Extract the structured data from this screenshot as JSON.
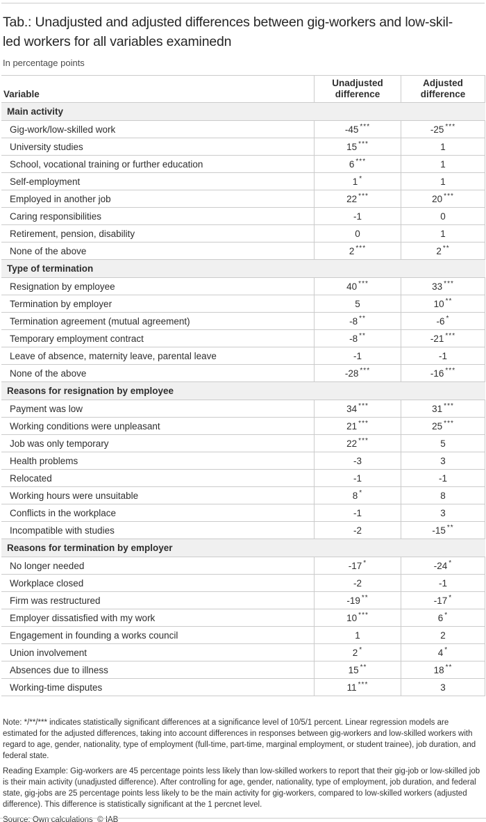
{
  "title": {
    "line1": "Tab.: Unadjusted and adjusted differences between gig-workers and low-skil-",
    "line2": "led workers for all variables examinedn"
  },
  "subtitle": "In percentage points",
  "table": {
    "header": {
      "variable": "Variable",
      "unadjusted": "Unadjusted difference",
      "adjusted": "Adjusted difference"
    },
    "sections": [
      {
        "label": "Main activity",
        "rows": [
          {
            "label": "Gig-work/low-skilled work",
            "unadj": "-45",
            "unadj_sig": "***",
            "adj": "-25",
            "adj_sig": "***"
          },
          {
            "label": "University studies",
            "unadj": "15",
            "unadj_sig": "***",
            "adj": "1",
            "adj_sig": ""
          },
          {
            "label": "School, vocational training or further education",
            "unadj": "6",
            "unadj_sig": "***",
            "adj": "1",
            "adj_sig": ""
          },
          {
            "label": "Self-employment",
            "unadj": "1",
            "unadj_sig": "*",
            "adj": "1",
            "adj_sig": ""
          },
          {
            "label": "Employed in another job",
            "unadj": "22",
            "unadj_sig": "***",
            "adj": "20",
            "adj_sig": "***"
          },
          {
            "label": "Caring responsibilities",
            "unadj": "-1",
            "unadj_sig": "",
            "adj": "0",
            "adj_sig": ""
          },
          {
            "label": "Retirement, pension, disability",
            "unadj": "0",
            "unadj_sig": "",
            "adj": "1",
            "adj_sig": ""
          },
          {
            "label": "None of the above",
            "unadj": "2",
            "unadj_sig": "***",
            "adj": "2",
            "adj_sig": "**"
          }
        ]
      },
      {
        "label": "Type of termination",
        "rows": [
          {
            "label": "Resignation by employee",
            "unadj": "40",
            "unadj_sig": "***",
            "adj": "33",
            "adj_sig": "***"
          },
          {
            "label": "Termination by employer",
            "unadj": "5",
            "unadj_sig": "",
            "adj": "10",
            "adj_sig": "**"
          },
          {
            "label": "Termination agreement (mutual agreement)",
            "unadj": "-8",
            "unadj_sig": "**",
            "adj": "-6",
            "adj_sig": "*"
          },
          {
            "label": "Temporary employment contract",
            "unadj": "-8",
            "unadj_sig": "**",
            "adj": "-21",
            "adj_sig": "***"
          },
          {
            "label": "Leave of absence, maternity leave, parental leave",
            "unadj": "-1",
            "unadj_sig": "",
            "adj": "-1",
            "adj_sig": ""
          },
          {
            "label": "None of the above",
            "unadj": "-28",
            "unadj_sig": "***",
            "adj": "-16",
            "adj_sig": "***"
          }
        ]
      },
      {
        "label": "Reasons for resignation by employee",
        "rows": [
          {
            "label": "Payment was low",
            "unadj": "34",
            "unadj_sig": "***",
            "adj": "31",
            "adj_sig": "***"
          },
          {
            "label": "Working conditions were unpleasant",
            "unadj": "21",
            "unadj_sig": "***",
            "adj": "25",
            "adj_sig": "***"
          },
          {
            "label": "Job was only temporary",
            "unadj": "22",
            "unadj_sig": "***",
            "adj": "5",
            "adj_sig": ""
          },
          {
            "label": "Health problems",
            "unadj": "-3",
            "unadj_sig": "",
            "adj": "3",
            "adj_sig": ""
          },
          {
            "label": "Relocated",
            "unadj": "-1",
            "unadj_sig": "",
            "adj": "-1",
            "adj_sig": ""
          },
          {
            "label": "Working hours were unsuitable",
            "unadj": "8",
            "unadj_sig": "*",
            "adj": "8",
            "adj_sig": ""
          },
          {
            "label": "Conflicts in the workplace",
            "unadj": "-1",
            "unadj_sig": "",
            "adj": "3",
            "adj_sig": ""
          },
          {
            "label": "Incompatible with studies",
            "unadj": "-2",
            "unadj_sig": "",
            "adj": "-15",
            "adj_sig": "**"
          }
        ]
      },
      {
        "label": "Reasons for termination by employer",
        "rows": [
          {
            "label": "No longer needed",
            "unadj": "-17",
            "unadj_sig": "*",
            "adj": "-24",
            "adj_sig": "*"
          },
          {
            "label": "Workplace closed",
            "unadj": "-2",
            "unadj_sig": "",
            "adj": "-1",
            "adj_sig": ""
          },
          {
            "label": "Firm was restructured",
            "unadj": "-19",
            "unadj_sig": "**",
            "adj": "-17",
            "adj_sig": "*"
          },
          {
            "label": "Employer dissatisfied with my work",
            "unadj": "10",
            "unadj_sig": "***",
            "adj": "6",
            "adj_sig": "*"
          },
          {
            "label": "Engagement in founding a works council",
            "unadj": "1",
            "unadj_sig": "",
            "adj": "2",
            "adj_sig": ""
          },
          {
            "label": "Union involvement",
            "unadj": "2",
            "unadj_sig": "*",
            "adj": "4",
            "adj_sig": "*"
          },
          {
            "label": "Absences due to illness",
            "unadj": "15",
            "unadj_sig": "**",
            "adj": "18",
            "adj_sig": "**"
          },
          {
            "label": "Working-time disputes",
            "unadj": "11",
            "unadj_sig": "***",
            "adj": "3",
            "adj_sig": ""
          }
        ]
      }
    ]
  },
  "notes": {
    "note": "Note: */**/*** indicates statistically significant differences at a significance level of 10/5/1 percent. Linear regression models are estimated for the adjusted differences, taking into account differences in responses between gig-workers and low-skilled workers with regard to age, gender, nationality, type of employment (full-time, part-time, marginal employment, or student trainee), job duration, and federal state.",
    "reading_example": "Reading Example: Gig-workers are 45 percentage points less likely than low-skilled workers to report that their gig-job or low-skilled job is their main activity (unadjusted difference). After controlling for age, gender, nationality, type of employment, job duration, and federal state, gig-jobs are 25 percentage points less likely to be the main activity for gig-workers, compared to low-skilled workers (adjusted difference). This difference is statistically significant at the 1 percnet level.",
    "source": "Source: Own calculations  © IAB"
  },
  "colors": {
    "border": "#cbcbcb",
    "section_background": "#f0f0f0",
    "text": "#2e2e2e"
  }
}
